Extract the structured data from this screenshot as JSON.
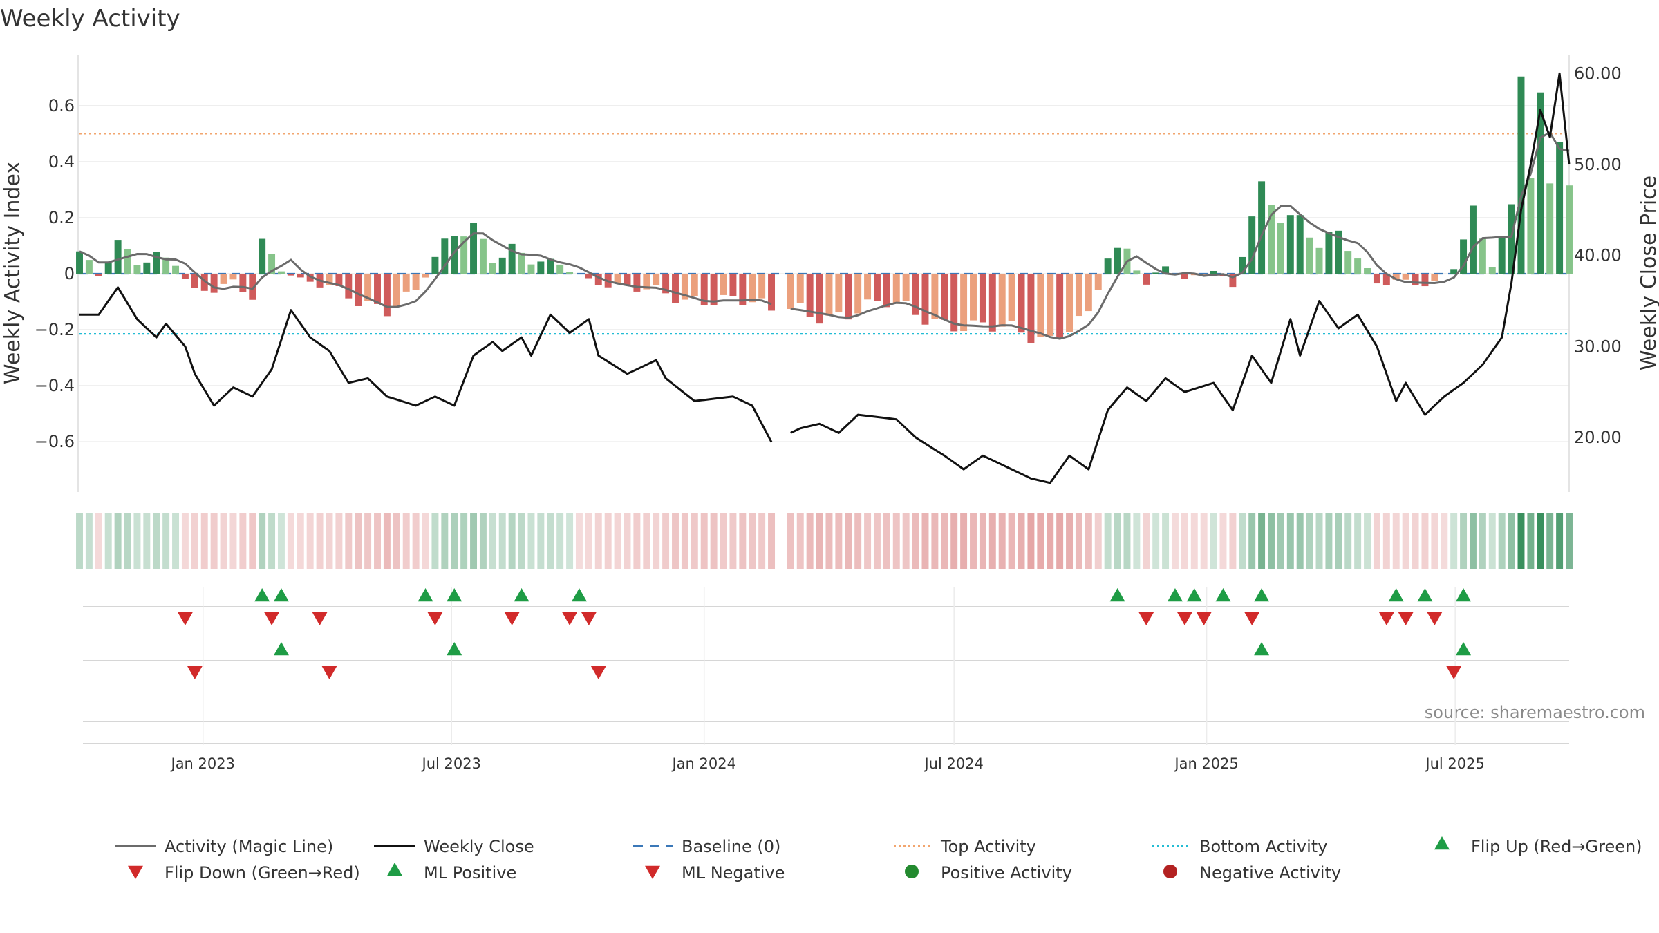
{
  "chart_data": {
    "type": "bar+line",
    "title": "Weekly Activity",
    "ylabel_left": "Weekly Activity Index",
    "ylabel_right": "Weekly Close Price",
    "left_axis": {
      "range": [
        -0.78,
        0.78
      ],
      "ticks": [
        0.6,
        0.4,
        0.2,
        0,
        -0.2,
        -0.4,
        -0.6
      ],
      "tick_labels": [
        "0.6",
        "0.4",
        "0.2",
        "0",
        "−0.2",
        "−0.4",
        "−0.6"
      ]
    },
    "right_axis": {
      "range": [
        14,
        62
      ],
      "ticks": [
        60,
        50,
        40,
        30,
        20
      ],
      "tick_labels": [
        "60.00",
        "50.00",
        "40.00",
        "30.00",
        "20.00"
      ]
    },
    "x_range": [
      "2022-10-03",
      "2025-09-22"
    ],
    "date_ticks": [
      {
        "date": "2023-01-01",
        "label": "Jan 2023"
      },
      {
        "date": "2023-07-01",
        "label": "Jul 2023"
      },
      {
        "date": "2024-01-01",
        "label": "Jan 2024"
      },
      {
        "date": "2024-07-01",
        "label": "Jul 2024"
      },
      {
        "date": "2025-01-01",
        "label": "Jan 2025"
      },
      {
        "date": "2025-07-01",
        "label": "Jul 2025"
      }
    ],
    "reference_lines": {
      "top_activity": 0.5,
      "bottom_activity": -0.215,
      "baseline": 0
    },
    "weekly_close_keypoints": [
      [
        "2022-10-03",
        33.5
      ],
      [
        "2022-10-17",
        33.5
      ],
      [
        "2022-10-31",
        36.5
      ],
      [
        "2022-11-14",
        33.0
      ],
      [
        "2022-11-28",
        31.0
      ],
      [
        "2022-12-05",
        32.5
      ],
      [
        "2022-12-19",
        30.0
      ],
      [
        "2022-12-26",
        27.0
      ],
      [
        "2023-01-09",
        23.5
      ],
      [
        "2023-01-23",
        25.5
      ],
      [
        "2023-02-06",
        24.5
      ],
      [
        "2023-02-20",
        27.5
      ],
      [
        "2023-03-06",
        34.0
      ],
      [
        "2023-03-20",
        31.0
      ],
      [
        "2023-04-03",
        29.5
      ],
      [
        "2023-04-17",
        26.0
      ],
      [
        "2023-05-01",
        26.5
      ],
      [
        "2023-05-15",
        24.5
      ],
      [
        "2023-06-05",
        23.5
      ],
      [
        "2023-06-19",
        24.5
      ],
      [
        "2023-07-03",
        23.5
      ],
      [
        "2023-07-17",
        29.0
      ],
      [
        "2023-07-31",
        30.5
      ],
      [
        "2023-08-07",
        29.5
      ],
      [
        "2023-08-21",
        31.0
      ],
      [
        "2023-08-28",
        29.0
      ],
      [
        "2023-09-11",
        33.5
      ],
      [
        "2023-09-25",
        31.5
      ],
      [
        "2023-10-09",
        33.0
      ],
      [
        "2023-10-16",
        29.0
      ],
      [
        "2023-11-06",
        27.0
      ],
      [
        "2023-11-27",
        28.5
      ],
      [
        "2023-12-04",
        26.5
      ],
      [
        "2023-12-25",
        24.0
      ],
      [
        "2024-01-22",
        24.5
      ],
      [
        "2024-02-05",
        23.5
      ],
      [
        "2024-02-19",
        19.5
      ],
      [
        "2024-03-11",
        21.0
      ],
      [
        "2024-03-25",
        21.5
      ],
      [
        "2024-04-08",
        20.5
      ],
      [
        "2024-04-22",
        22.5
      ],
      [
        "2024-05-20",
        22.0
      ],
      [
        "2024-06-03",
        20.0
      ],
      [
        "2024-06-24",
        18.0
      ],
      [
        "2024-07-08",
        16.5
      ],
      [
        "2024-07-22",
        18.0
      ],
      [
        "2024-08-12",
        16.5
      ],
      [
        "2024-08-26",
        15.5
      ],
      [
        "2024-09-09",
        15.0
      ],
      [
        "2024-09-23",
        18.0
      ],
      [
        "2024-10-07",
        16.5
      ],
      [
        "2024-10-21",
        23.0
      ],
      [
        "2024-11-04",
        25.5
      ],
      [
        "2024-11-18",
        24.0
      ],
      [
        "2024-12-02",
        26.5
      ],
      [
        "2024-12-16",
        25.0
      ],
      [
        "2025-01-06",
        26.0
      ],
      [
        "2025-01-20",
        23.0
      ],
      [
        "2025-02-03",
        29.0
      ],
      [
        "2025-02-17",
        26.0
      ],
      [
        "2025-03-03",
        33.0
      ],
      [
        "2025-03-10",
        29.0
      ],
      [
        "2025-03-24",
        35.0
      ],
      [
        "2025-04-07",
        32.0
      ],
      [
        "2025-04-21",
        33.5
      ],
      [
        "2025-05-05",
        30.0
      ],
      [
        "2025-05-19",
        24.0
      ],
      [
        "2025-05-26",
        26.0
      ],
      [
        "2025-06-09",
        22.5
      ],
      [
        "2025-06-23",
        24.5
      ],
      [
        "2025-07-07",
        26.0
      ],
      [
        "2025-07-21",
        28.0
      ],
      [
        "2025-08-04",
        31.0
      ],
      [
        "2025-08-11",
        37.0
      ],
      [
        "2025-08-18",
        45.0
      ],
      [
        "2025-08-25",
        50.0
      ],
      [
        "2025-09-01",
        56.0
      ],
      [
        "2025-09-08",
        53.0
      ],
      [
        "2025-09-15",
        60.0
      ],
      [
        "2025-09-22",
        50.0
      ]
    ],
    "activity_keypoints": [
      [
        "2022-10-03",
        0.07
      ],
      [
        "2022-10-17",
        -0.01
      ],
      [
        "2022-10-31",
        0.11
      ],
      [
        "2022-11-14",
        0.05
      ],
      [
        "2022-11-28",
        0.07
      ],
      [
        "2022-12-12",
        0.04
      ],
      [
        "2022-12-26",
        -0.08
      ],
      [
        "2023-01-09",
        -0.06
      ],
      [
        "2023-01-23",
        -0.03
      ],
      [
        "2023-02-06",
        -0.07
      ],
      [
        "2023-02-13",
        0.12
      ],
      [
        "2023-02-27",
        0.02
      ],
      [
        "2023-03-13",
        -0.03
      ],
      [
        "2023-04-03",
        -0.05
      ],
      [
        "2023-04-24",
        -0.09
      ],
      [
        "2023-05-15",
        -0.12
      ],
      [
        "2023-06-05",
        -0.07
      ],
      [
        "2023-06-19",
        0.05
      ],
      [
        "2023-07-03",
        0.14
      ],
      [
        "2023-07-17",
        0.18
      ],
      [
        "2023-07-31",
        0.06
      ],
      [
        "2023-08-14",
        0.09
      ],
      [
        "2023-08-28",
        0.04
      ],
      [
        "2023-09-18",
        0.03
      ],
      [
        "2023-10-09",
        -0.02
      ],
      [
        "2023-10-30",
        -0.04
      ],
      [
        "2023-11-20",
        -0.06
      ],
      [
        "2023-12-18",
        -0.1
      ],
      [
        "2024-01-15",
        -0.08
      ],
      [
        "2024-02-05",
        -0.1
      ],
      [
        "2024-02-19",
        -0.15
      ],
      [
        "2024-03-11",
        -0.13
      ],
      [
        "2024-04-01",
        -0.15
      ],
      [
        "2024-04-22",
        -0.13
      ],
      [
        "2024-05-13",
        -0.11
      ],
      [
        "2024-06-03",
        -0.14
      ],
      [
        "2024-06-24",
        -0.17
      ],
      [
        "2024-07-15",
        -0.19
      ],
      [
        "2024-08-05",
        -0.2
      ],
      [
        "2024-08-26",
        -0.22
      ],
      [
        "2024-09-09",
        -0.23
      ],
      [
        "2024-09-23",
        -0.18
      ],
      [
        "2024-10-07",
        -0.15
      ],
      [
        "2024-10-21",
        0.05
      ],
      [
        "2024-11-04",
        0.08
      ],
      [
        "2024-11-18",
        -0.04
      ],
      [
        "2024-12-02",
        0.04
      ],
      [
        "2024-12-16",
        -0.02
      ],
      [
        "2025-01-06",
        0.01
      ],
      [
        "2025-01-20",
        -0.06
      ],
      [
        "2025-02-03",
        0.2
      ],
      [
        "2025-02-10",
        0.31
      ],
      [
        "2025-02-24",
        0.22
      ],
      [
        "2025-03-10",
        0.2
      ],
      [
        "2025-03-24",
        0.1
      ],
      [
        "2025-04-07",
        0.13
      ],
      [
        "2025-04-21",
        0.05
      ],
      [
        "2025-05-05",
        -0.03
      ],
      [
        "2025-05-19",
        -0.02
      ],
      [
        "2025-06-02",
        -0.03
      ],
      [
        "2025-06-16",
        -0.04
      ],
      [
        "2025-06-30",
        0.02
      ],
      [
        "2025-07-14",
        0.21
      ],
      [
        "2025-07-28",
        0.04
      ],
      [
        "2025-08-11",
        0.24
      ],
      [
        "2025-08-18",
        0.73
      ],
      [
        "2025-08-25",
        0.37
      ],
      [
        "2025-09-01",
        0.63
      ],
      [
        "2025-09-08",
        0.3
      ],
      [
        "2025-09-15",
        0.48
      ],
      [
        "2025-09-22",
        0.31
      ]
    ],
    "data_gap": [
      "2024-02-26",
      "2024-02-26"
    ],
    "flip_up_dates": [
      "2023-02-13",
      "2023-02-27",
      "2023-06-12",
      "2023-07-03",
      "2023-08-21",
      "2023-10-02",
      "2024-10-28",
      "2024-12-09",
      "2024-12-23",
      "2025-01-13",
      "2025-02-10",
      "2025-05-19",
      "2025-06-09",
      "2025-07-07"
    ],
    "flip_down_dates": [
      "2022-12-19",
      "2023-02-20",
      "2023-03-27",
      "2023-06-19",
      "2023-08-14",
      "2023-09-25",
      "2023-10-09",
      "2024-11-18",
      "2024-12-16",
      "2024-12-30",
      "2025-02-03",
      "2025-05-12",
      "2025-05-26",
      "2025-06-16"
    ],
    "ml_positive_dates": [
      "2023-02-27",
      "2023-07-03",
      "2025-02-10",
      "2025-07-07"
    ],
    "ml_negative_dates": [
      "2022-12-26",
      "2023-04-03",
      "2023-10-16",
      "2025-06-30"
    ],
    "positive_activity_dates": [],
    "negative_activity_dates": [],
    "source": "source: sharemaestro.com",
    "legend": [
      {
        "label": "Activity (Magic Line)",
        "symbol": "line",
        "color": "#6b6b6b"
      },
      {
        "label": "Weekly Close",
        "symbol": "line",
        "color": "#111111"
      },
      {
        "label": "Baseline (0)",
        "symbol": "dash",
        "color": "#3b78b8"
      },
      {
        "label": "Top Activity",
        "symbol": "dot-line",
        "color": "#f2a56e"
      },
      {
        "label": "Bottom Activity",
        "symbol": "dot-line",
        "color": "#22bcd4"
      },
      {
        "label": "Flip Up (Red→Green)",
        "symbol": "tri-up",
        "color": "#1e9c45"
      },
      {
        "label": "Flip Down (Green→Red)",
        "symbol": "tri-down",
        "color": "#d12a2a"
      },
      {
        "label": "ML Positive",
        "symbol": "tri-up",
        "color": "#1e9c45"
      },
      {
        "label": "ML Negative",
        "symbol": "tri-down",
        "color": "#d12a2a"
      },
      {
        "label": "Positive Activity",
        "symbol": "circle",
        "color": "#238a2f"
      },
      {
        "label": "Negative Activity",
        "symbol": "circle",
        "color": "#b32121"
      }
    ],
    "colors": {
      "pos_dark": "#2f8a55",
      "pos_light": "#86c48a",
      "neg_dark": "#cf5b5b",
      "neg_light": "#eba07d",
      "line_activity": "#6b6b6b",
      "line_close": "#111111",
      "top": "#f2a56e",
      "bottom": "#22bcd4",
      "baseline": "#3b78b8",
      "up": "#1e9c45",
      "down": "#d12a2a"
    }
  }
}
